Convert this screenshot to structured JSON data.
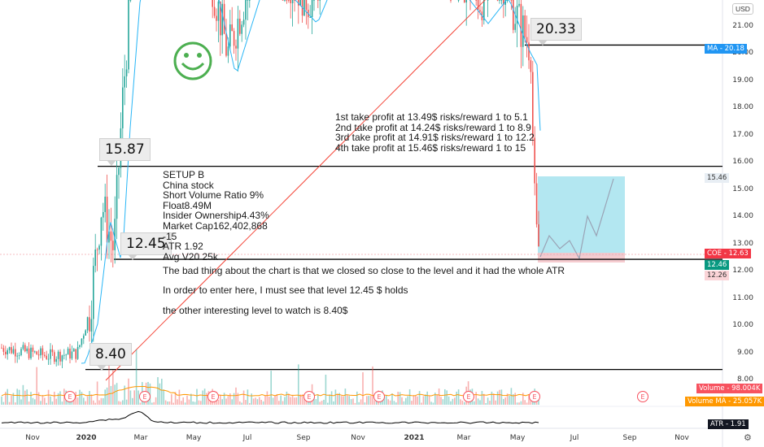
{
  "chart_data": {
    "type": "candlestick",
    "price_axis": {
      "ticks": [
        "21.00",
        "20.00",
        "19.00",
        "18.00",
        "17.00",
        "16.00",
        "15.00",
        "14.00",
        "13.00",
        "12.00",
        "11.00",
        "10.00",
        "9.00",
        "8.00"
      ],
      "currency": "USD"
    },
    "time_axis": {
      "ticks": [
        {
          "label": "Nov",
          "bold": false
        },
        {
          "label": "2020",
          "bold": true
        },
        {
          "label": "Mar",
          "bold": false
        },
        {
          "label": "May",
          "bold": false
        },
        {
          "label": "Jul",
          "bold": false
        },
        {
          "label": "Sep",
          "bold": false
        },
        {
          "label": "Nov",
          "bold": false
        },
        {
          "label": "2021",
          "bold": true
        },
        {
          "label": "Mar",
          "bold": false
        },
        {
          "label": "May",
          "bold": false
        },
        {
          "label": "Jul",
          "bold": false
        },
        {
          "label": "Sep",
          "bold": false
        },
        {
          "label": "Nov",
          "bold": false
        }
      ]
    },
    "horizontal_levels": [
      20.33,
      15.87,
      12.45,
      8.4
    ],
    "callouts": [
      "20.33",
      "15.87",
      "12.45",
      "8.40"
    ],
    "price_tags": [
      {
        "text": "MA - 20.18",
        "color": "#2196f3"
      },
      {
        "text": "15.46",
        "color": "#e8eef4"
      },
      {
        "text": "COE - 12.63",
        "color": "#f23645"
      },
      {
        "text": "12.46",
        "color": "#089981"
      },
      {
        "text": "12.26",
        "color": "#fbd4d7"
      },
      {
        "text": "Volume - 98.004K",
        "color": "#f7525f"
      },
      {
        "text": "Volume MA - 25.057K",
        "color": "#ff9800"
      },
      {
        "text": "ATR - 1.91",
        "color": "#131722"
      }
    ],
    "setup_note": [
      "SETUP B",
      "China stock",
      "Short Volume Ratio 9%",
      "Float8.49M",
      "Insider Ownership4.43%",
      "Market Cap162,402,868",
      "-15",
      "ATR 1.92",
      "Avg V20 25k"
    ],
    "take_profit_note": [
      "1st take profit at 13.49$ risks/reward 1 to 5.1",
      "2nd take profit at 14.24$ risks/reward 1 to 8.9",
      "3rd take profit at 14.91$ risks/reward 1 to 12.2",
      "4th take profit at 15.46$ risks/reward 1 to 15"
    ],
    "commentary": [
      "The bad thing about the chart is that we closed so close to the level and it had the whole ATR",
      "In order to enter here, I must see that level 12.45 $ holds",
      "the other interesting level to watch is 8.40$"
    ],
    "earnings_marker": "E",
    "colors": {
      "up": "#26a69a",
      "down": "#ef5350",
      "ma_rise": "#29b6f6",
      "ma_slow": "#f44336",
      "level": "#000000",
      "target_box": "#a6e3ef",
      "stop_box": "#f5c6cb"
    }
  }
}
